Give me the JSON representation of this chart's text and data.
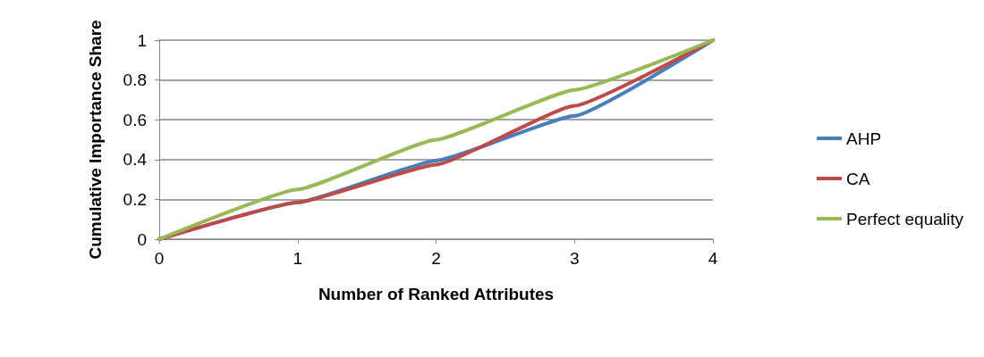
{
  "chart_data": {
    "type": "line",
    "xlabel": "Number of Ranked Attributes",
    "ylabel": "Cumulative Importance Share",
    "x": [
      0,
      1,
      2,
      3,
      4
    ],
    "xlim": [
      0,
      4
    ],
    "xticks": [
      0,
      1,
      2,
      3,
      4
    ],
    "ylim": [
      0,
      1
    ],
    "yticks": [
      0,
      0.2,
      0.4,
      0.6,
      0.8,
      1
    ],
    "grid": "y",
    "legend": "right",
    "marker": "none",
    "line_style": "solid",
    "series": [
      {
        "name": "AHP",
        "color": "#4a7ebb",
        "values": [
          0,
          0.185,
          0.395,
          0.62,
          1
        ]
      },
      {
        "name": "CA",
        "color": "#be4b48",
        "values": [
          0,
          0.185,
          0.375,
          0.67,
          1
        ]
      },
      {
        "name": "Perfect equality",
        "color": "#98b954",
        "values": [
          0,
          0.25,
          0.5,
          0.75,
          1
        ]
      }
    ]
  }
}
